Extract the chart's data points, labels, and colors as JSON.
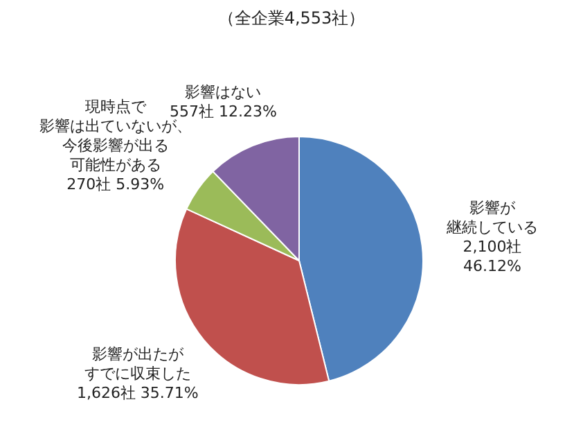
{
  "chart_data": {
    "type": "pie",
    "title": "（全企業4,553社）",
    "categories": [
      "影響が継続している",
      "影響が出たがすでに収束した",
      "現時点で影響は出ていないが、今後影響が出る可能性がある",
      "影響はない"
    ],
    "values": [
      2100,
      1626,
      270,
      557
    ],
    "colors": [
      "#4f81bd",
      "#c0504d",
      "#9bbb59",
      "#8064a2"
    ],
    "value_labels": [
      "2,100社\n46.12%",
      "1,626社 35.71%",
      "270社 5.93%",
      "557社 12.23%"
    ]
  }
}
